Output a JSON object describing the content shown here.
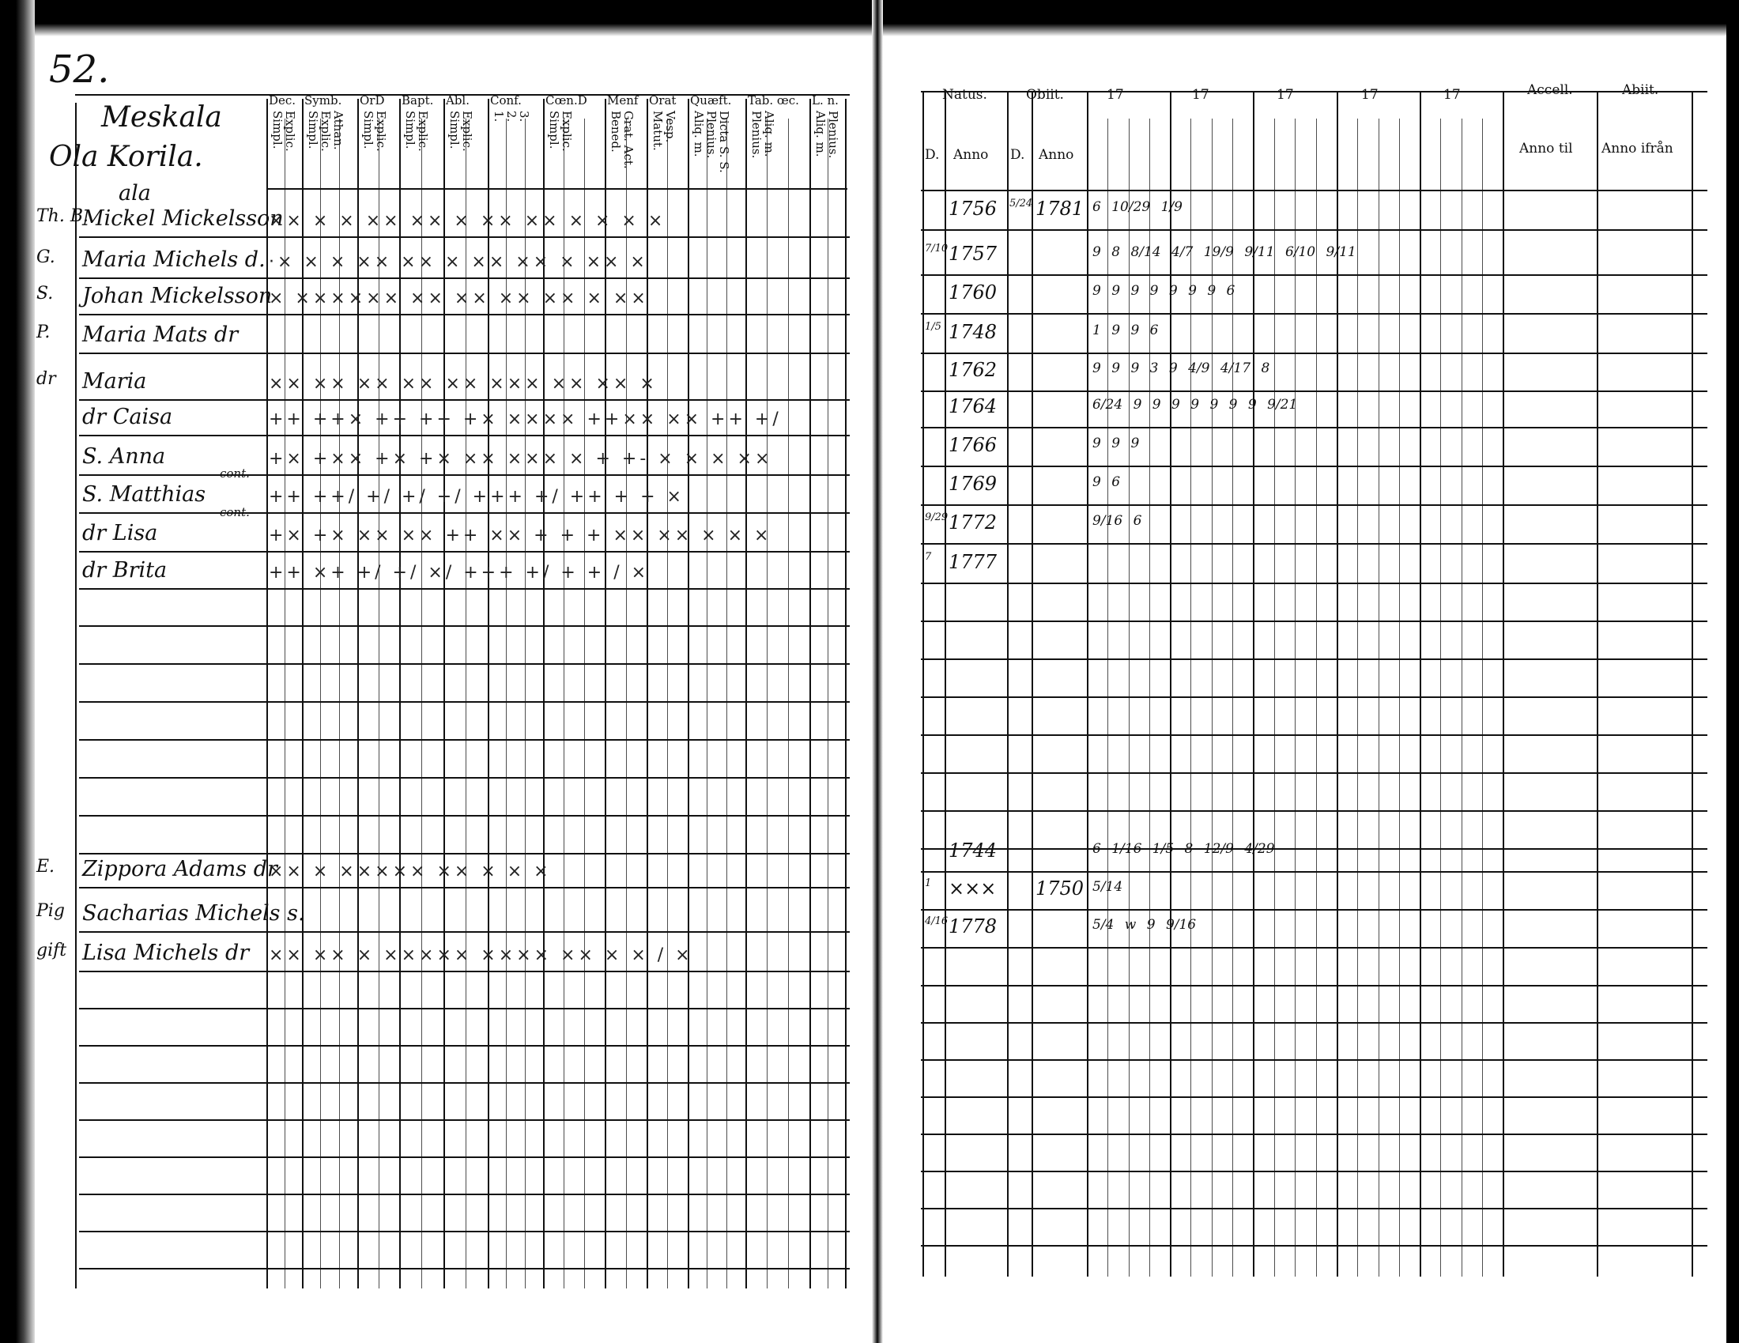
{
  "left_page": {
    "page_number": "52.",
    "household": {
      "farm": "Meskala",
      "owner": "Ola Korila."
    },
    "columns": [
      {
        "title": "Dec.",
        "sub": "Explic.\nSimpl."
      },
      {
        "title": "Symb.",
        "sub": "Athan.\nExplic.\nSimpl."
      },
      {
        "title": "OrD",
        "sub": "Explic.\nSimpl."
      },
      {
        "title": "Bapt.",
        "sub": "Explic.\nSimpl."
      },
      {
        "title": "Abl.",
        "sub": "Explic.\nSimpl."
      },
      {
        "title": "Conf.",
        "sub": "3.\n2.\n1."
      },
      {
        "title": "Cœn.D",
        "sub": "Explic.\nSimpl."
      },
      {
        "title": "Menf",
        "sub": "Grat. Act.\nBened."
      },
      {
        "title": "Orat",
        "sub": "Vesp.\nMatut."
      },
      {
        "title": "Quæft.",
        "sub": "Dicta S. S.\nPlenius.\nAliq. m."
      },
      {
        "title": "Tab. œc.",
        "sub": "Aliq. m.\nPlenius."
      },
      {
        "title": "L. n.",
        "sub": "Plenius.\nAliq. m."
      }
    ],
    "rows": [
      {
        "prefix": "Th. B.",
        "name": "Mickel Mickelsson",
        "note": "ala",
        "marks": "×× × ×  ×× ×× × ×× ×× × ×  ×    ×"
      },
      {
        "prefix": "G.",
        "name": "Maria Michels d.",
        "marks": "·× × ×  ×× ×× × ×× ×× × ×× ×"
      },
      {
        "prefix": "S.",
        "name": "Johan Mickelsson",
        "marks": "×  ×××××× ×× ×× ×× ×× ×  ××"
      },
      {
        "prefix": "P.",
        "name": "Maria Mats dr",
        "marks": ""
      },
      {
        "prefix": "dr",
        "name": "Maria",
        "marks": "×× ×× ×× ×× ×× ××× ×× ×× ×"
      },
      {
        "prefix": "",
        "name": "dr Caisa",
        "marks": "++ ++× ++ ++ +× ×××× ++×× ××  ++ +/"
      },
      {
        "prefix": "",
        "name": "S. Anna",
        "marks": "+× +×× +× +× ×× ××× ×  + +- ×  × × ××"
      },
      {
        "prefix": "",
        "name": "S. Matthias",
        "cont": "cont.",
        "marks": "++ ++/ +/ +/ +/ +++ +/  ++ +   +  ×"
      },
      {
        "prefix": "",
        "name": "dr Lisa",
        "cont": "cont.",
        "marks": "+× +× ×× ×× ++ ×× + + + ×× ×× × × ×"
      },
      {
        "prefix": "",
        "name": "dr Brita",
        "marks": "++ ×+ +/ +/ ×/ +++ +/ +  +    /  ×"
      }
    ],
    "lower_rows": [
      {
        "prefix": "E.",
        "name": "Zippora Adams dr",
        "marks": "×× ×  ××××× ×× × × ×"
      },
      {
        "prefix": "Pig",
        "name": "Sacharias Michels s.",
        "marks": ""
      },
      {
        "prefix": "gift",
        "name": "Lisa Michels dr",
        "marks": "×× ×× × ××××× ×××× ×× × ×  /        ×"
      }
    ]
  },
  "right_page": {
    "headers": {
      "natus": "Natus.",
      "obiit": "Obiit.",
      "d": "D.",
      "anno": "Anno",
      "years": [
        "17",
        "17",
        "17",
        "17",
        "17"
      ],
      "accessit": "Accell.",
      "abiit": "Abiit.",
      "anno_til": "Anno til",
      "anno_ifran": "Anno ifrån"
    },
    "rows": [
      {
        "day": "",
        "born": "1756",
        "death_day": "5/24",
        "died": "1781",
        "notes": "6 10/29   1/9"
      },
      {
        "day": "7/10",
        "born": "1757",
        "notes": "9 8   8/14   4/7  19/9 9/11 6/10   9/11"
      },
      {
        "day": "",
        "born": "1760",
        "notes": "9   9 9   9   9 9 9   6"
      },
      {
        "day": "1/5",
        "born": "1748",
        "notes": "1 9 9   6"
      },
      {
        "day": "",
        "born": "1762",
        "notes": "9 9   9 3   9 4/9   4/17   8"
      },
      {
        "day": "",
        "born": "1764",
        "notes": "6/24 9   9 9   9   9 9 9   9/21"
      },
      {
        "day": "",
        "born": "1766",
        "notes": "9   9 9"
      },
      {
        "day": "",
        "born": "1769",
        "notes": "9   6"
      },
      {
        "day": "9/29",
        "born": "1772",
        "notes": "9/16  6"
      },
      {
        "day": "7",
        "born": "1777",
        "notes": ""
      }
    ],
    "lower_rows": [
      {
        "day": "",
        "born": "1744",
        "notes": "6   1/16   1/5   8  12/9  4/29"
      },
      {
        "day": "1",
        "born": "×××",
        "died": "1750",
        "notes": "5/14"
      },
      {
        "day": "4/16",
        "born": "1778",
        "notes": "5/4 w 9 9/16"
      }
    ]
  }
}
